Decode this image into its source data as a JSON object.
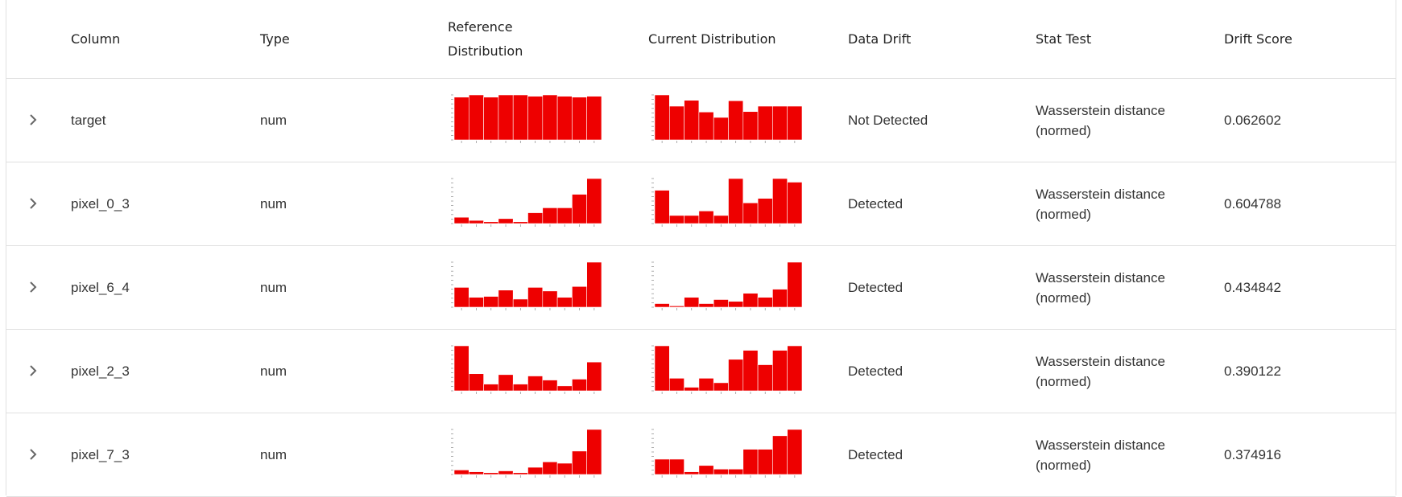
{
  "header": {
    "column": "Column",
    "type": "Type",
    "reference_line1": "Reference",
    "reference_line2": "Distribution",
    "current": "Current Distribution",
    "data_drift": "Data Drift",
    "stat_test": "Stat Test",
    "drift_score": "Drift Score"
  },
  "colors": {
    "bar": "#ee0000",
    "divider": "#e0e0e0",
    "text": "#333333"
  },
  "icons": {
    "expander": "chevron-right-icon"
  },
  "rows": [
    {
      "column": "target",
      "type": "num",
      "data_drift": "Not Detected",
      "stat_test_line1": "Wasserstein distance",
      "stat_test_line2": "(normed)",
      "drift_score": "0.062602",
      "reference_hist": [
        0.95,
        1.0,
        0.95,
        1.0,
        1.0,
        0.97,
        1.0,
        0.97,
        0.95,
        0.97
      ],
      "current_hist": [
        1.0,
        0.75,
        0.88,
        0.62,
        0.5,
        0.87,
        0.63,
        0.75,
        0.75,
        0.75
      ]
    },
    {
      "column": "pixel_0_3",
      "type": "num",
      "data_drift": "Detected",
      "stat_test_line1": "Wasserstein distance",
      "stat_test_line2": "(normed)",
      "drift_score": "0.604788",
      "reference_hist": [
        0.14,
        0.07,
        0.04,
        0.11,
        0.04,
        0.24,
        0.35,
        0.35,
        0.65,
        1.0
      ],
      "current_hist": [
        0.74,
        0.18,
        0.18,
        0.28,
        0.18,
        1.0,
        0.46,
        0.56,
        1.0,
        0.92
      ]
    },
    {
      "column": "pixel_6_4",
      "type": "num",
      "data_drift": "Detected",
      "stat_test_line1": "Wasserstein distance",
      "stat_test_line2": "(normed)",
      "drift_score": "0.434842",
      "reference_hist": [
        0.44,
        0.22,
        0.24,
        0.38,
        0.18,
        0.44,
        0.36,
        0.22,
        0.46,
        1.0
      ],
      "current_hist": [
        0.08,
        0.03,
        0.22,
        0.08,
        0.17,
        0.13,
        0.31,
        0.22,
        0.4,
        1.0
      ]
    },
    {
      "column": "pixel_2_3",
      "type": "num",
      "data_drift": "Detected",
      "stat_test_line1": "Wasserstein distance",
      "stat_test_line2": "(normed)",
      "drift_score": "0.390122",
      "reference_hist": [
        1.0,
        0.38,
        0.15,
        0.36,
        0.15,
        0.33,
        0.24,
        0.11,
        0.26,
        0.64
      ],
      "current_hist": [
        1.0,
        0.28,
        0.08,
        0.28,
        0.18,
        0.7,
        0.9,
        0.58,
        0.9,
        1.0
      ]
    },
    {
      "column": "pixel_7_3",
      "type": "num",
      "data_drift": "Detected",
      "stat_test_line1": "Wasserstein distance",
      "stat_test_line2": "(normed)",
      "drift_score": "0.374916",
      "reference_hist": [
        0.1,
        0.06,
        0.04,
        0.08,
        0.04,
        0.16,
        0.28,
        0.25,
        0.52,
        1.0
      ],
      "current_hist": [
        0.34,
        0.34,
        0.06,
        0.2,
        0.12,
        0.12,
        0.56,
        0.56,
        0.86,
        1.0
      ]
    }
  ]
}
